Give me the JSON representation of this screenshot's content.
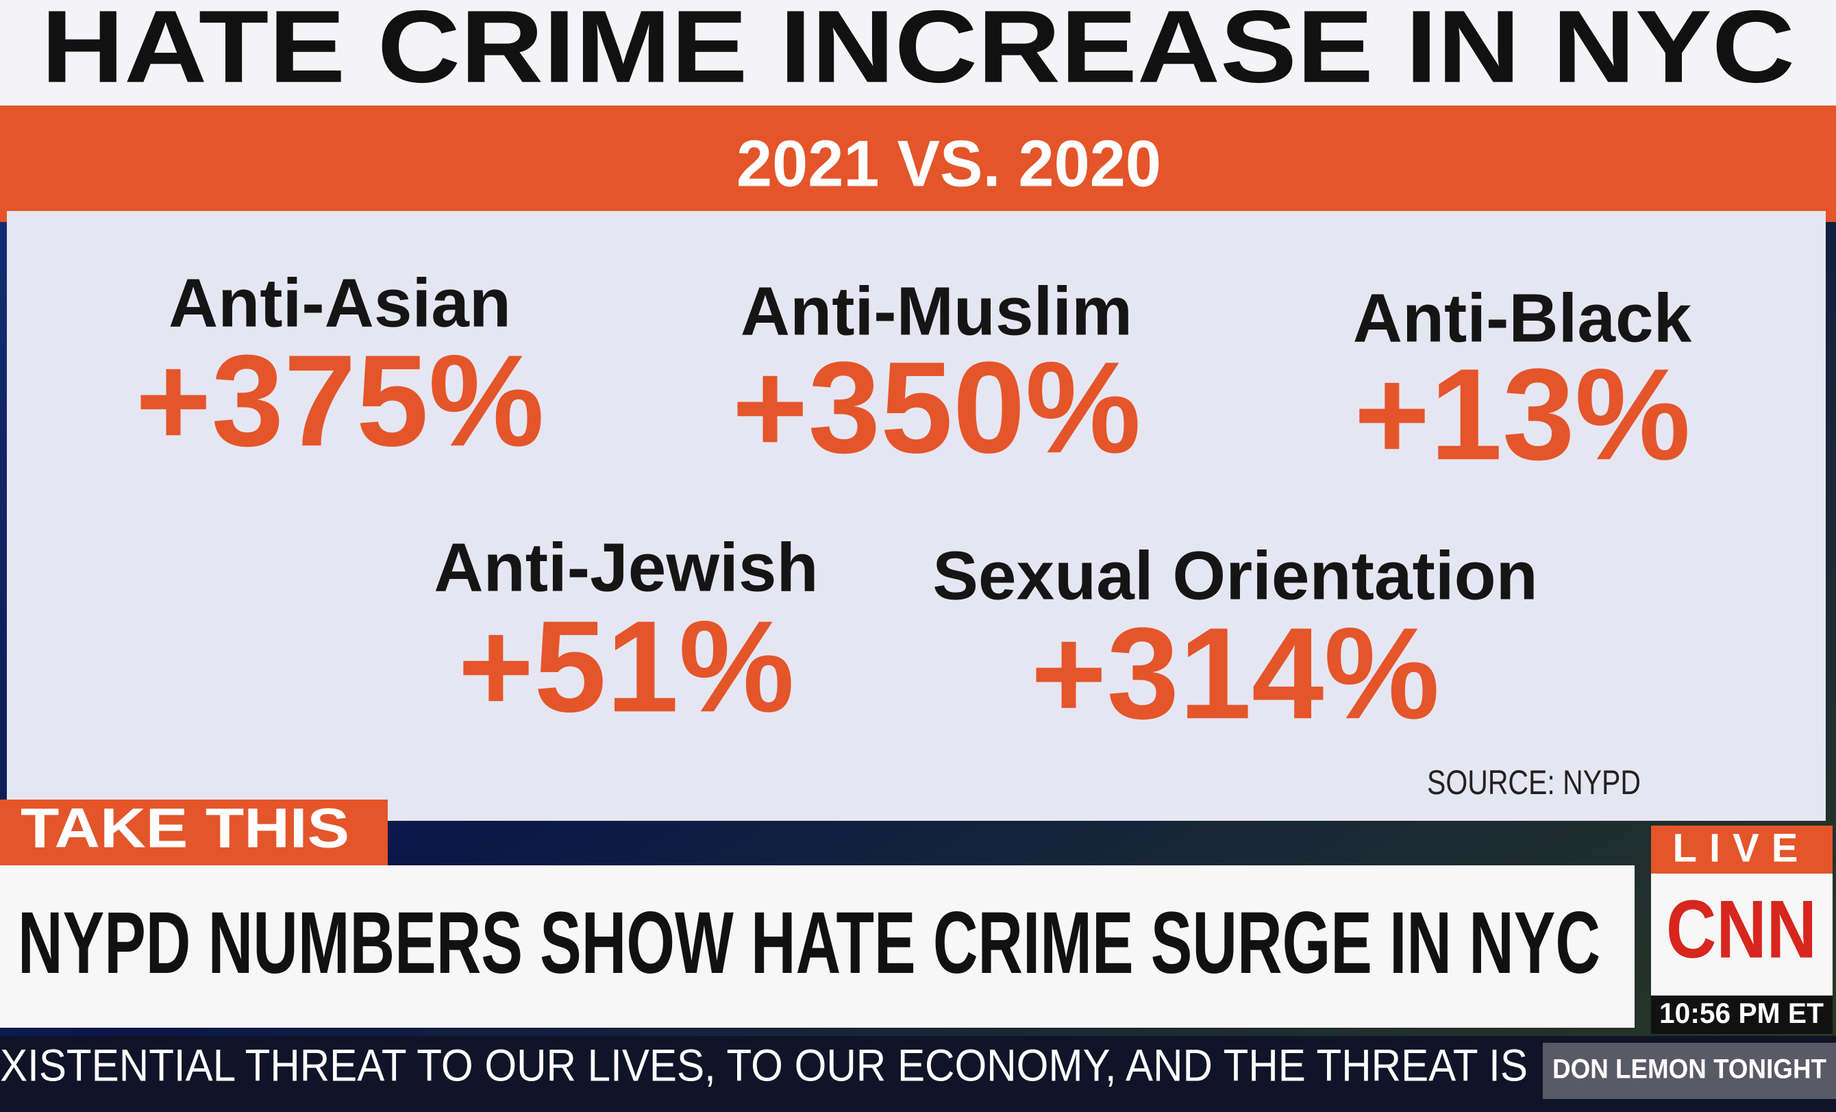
{
  "header": {
    "title": "HATE CRIME INCREASE IN NYC",
    "subtitle": "2021 VS. 2020"
  },
  "stats": [
    {
      "label": "Anti-Asian",
      "value": "+375%"
    },
    {
      "label": "Anti-Muslim",
      "value": "+350%"
    },
    {
      "label": "Anti-Black",
      "value": "+13%"
    },
    {
      "label": "Anti-Jewish",
      "value": "+51%"
    },
    {
      "label": "Sexual Orientation",
      "value": "+314%"
    }
  ],
  "source": "SOURCE: NYPD",
  "lower_third": {
    "tag": "TAKE THIS",
    "headline": "NYPD NUMBERS SHOW HATE CRIME SURGE IN NYC"
  },
  "bug": {
    "live": "LIVE",
    "network": "CNN",
    "time": "10:56 PM ET"
  },
  "ticker": {
    "text": "XISTENTIAL THREAT TO OUR LIVES, TO OUR ECONOMY, AND THE THREAT IS",
    "show": "DON LEMON TONIGHT"
  }
}
